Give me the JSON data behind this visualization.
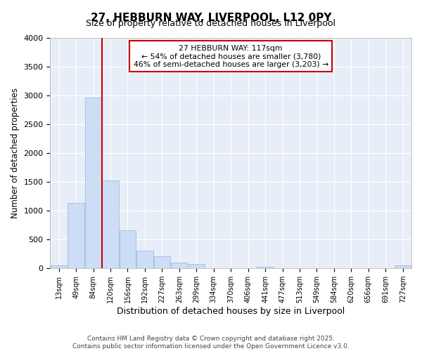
{
  "title": "27, HEBBURN WAY, LIVERPOOL, L12 0PY",
  "subtitle": "Size of property relative to detached houses in Liverpool",
  "xlabel": "Distribution of detached houses by size in Liverpool",
  "ylabel": "Number of detached properties",
  "bar_color": "#ccddf5",
  "bar_edge_color": "#a0bde0",
  "categories": [
    "13sqm",
    "49sqm",
    "84sqm",
    "120sqm",
    "156sqm",
    "192sqm",
    "227sqm",
    "263sqm",
    "299sqm",
    "334sqm",
    "370sqm",
    "406sqm",
    "441sqm",
    "477sqm",
    "513sqm",
    "549sqm",
    "584sqm",
    "620sqm",
    "656sqm",
    "691sqm",
    "727sqm"
  ],
  "values": [
    50,
    1130,
    2970,
    1530,
    660,
    310,
    210,
    100,
    80,
    0,
    0,
    0,
    30,
    0,
    0,
    0,
    0,
    0,
    0,
    0,
    50
  ],
  "ylim": [
    0,
    4000
  ],
  "yticks": [
    0,
    500,
    1000,
    1500,
    2000,
    2500,
    3000,
    3500,
    4000
  ],
  "vline_x_index": 3,
  "vline_color": "#cc0000",
  "annotation_text": "27 HEBBURN WAY: 117sqm\n← 54% of detached houses are smaller (3,780)\n46% of semi-detached houses are larger (3,203) →",
  "annotation_box_color": "#ffffff",
  "annotation_box_edge": "#cc0000",
  "footer_line1": "Contains HM Land Registry data © Crown copyright and database right 2025.",
  "footer_line2": "Contains public sector information licensed under the Open Government Licence v3.0.",
  "fig_bg_color": "#ffffff",
  "plot_bg_color": "#e8eef8",
  "grid_color": "#ffffff"
}
